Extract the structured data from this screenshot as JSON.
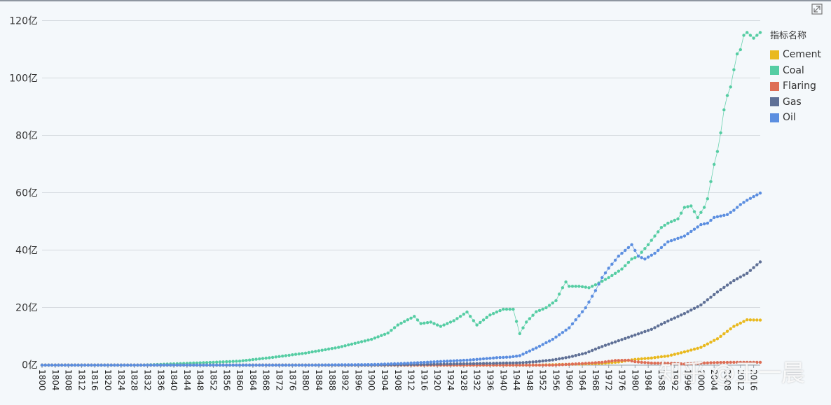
{
  "toolbar": {
    "expand_icon": "expand-arrow-icon"
  },
  "legend": {
    "title": "指标名称"
  },
  "watermark": "知乎 @王一晨",
  "chart_data": {
    "type": "scatter",
    "title": "",
    "xlabel": "",
    "ylabel": "",
    "x_start": 1800,
    "x_end": 2018,
    "x_tick_step": 4,
    "ylim": [
      0,
      12000000000
    ],
    "y_ticks": [
      {
        "value": 0,
        "label": "0亿"
      },
      {
        "value": 2000000000,
        "label": "20亿"
      },
      {
        "value": 4000000000,
        "label": "40亿"
      },
      {
        "value": 6000000000,
        "label": "60亿"
      },
      {
        "value": 8000000000,
        "label": "80亿"
      },
      {
        "value": 10000000000,
        "label": "100亿"
      },
      {
        "value": 12000000000,
        "label": "120亿"
      }
    ],
    "grid": true,
    "legend_position": "right",
    "series": [
      {
        "name": "Cement",
        "color": "#e9b91e",
        "points": [
          [
            1800,
            0
          ],
          [
            1928,
            0
          ],
          [
            1950,
            0
          ],
          [
            1960,
            30000000
          ],
          [
            1970,
            60000000
          ],
          [
            1975,
            110000000
          ],
          [
            1980,
            200000000
          ],
          [
            1985,
            250000000
          ],
          [
            1990,
            320000000
          ],
          [
            1995,
            460000000
          ],
          [
            2000,
            620000000
          ],
          [
            2005,
            920000000
          ],
          [
            2010,
            1350000000
          ],
          [
            2014,
            1580000000
          ],
          [
            2018,
            1570000000
          ]
        ]
      },
      {
        "name": "Coal",
        "color": "#55cda3",
        "points": [
          [
            1800,
            0
          ],
          [
            1830,
            0
          ],
          [
            1850,
            90000000
          ],
          [
            1860,
            140000000
          ],
          [
            1870,
            270000000
          ],
          [
            1880,
            420000000
          ],
          [
            1890,
            620000000
          ],
          [
            1900,
            900000000
          ],
          [
            1905,
            1120000000
          ],
          [
            1908,
            1400000000
          ],
          [
            1913,
            1700000000
          ],
          [
            1915,
            1450000000
          ],
          [
            1918,
            1500000000
          ],
          [
            1921,
            1350000000
          ],
          [
            1925,
            1550000000
          ],
          [
            1929,
            1850000000
          ],
          [
            1932,
            1400000000
          ],
          [
            1936,
            1750000000
          ],
          [
            1940,
            1950000000
          ],
          [
            1943,
            1950000000
          ],
          [
            1945,
            1100000000
          ],
          [
            1947,
            1500000000
          ],
          [
            1950,
            1860000000
          ],
          [
            1953,
            2000000000
          ],
          [
            1956,
            2250000000
          ],
          [
            1958,
            2700000000
          ],
          [
            1959,
            2900000000
          ],
          [
            1960,
            2750000000
          ],
          [
            1963,
            2750000000
          ],
          [
            1966,
            2700000000
          ],
          [
            1968,
            2800000000
          ],
          [
            1972,
            3050000000
          ],
          [
            1976,
            3350000000
          ],
          [
            1979,
            3700000000
          ],
          [
            1981,
            3800000000
          ],
          [
            1984,
            4200000000
          ],
          [
            1988,
            4800000000
          ],
          [
            1990,
            4950000000
          ],
          [
            1993,
            5100000000
          ],
          [
            1995,
            5500000000
          ],
          [
            1997,
            5550000000
          ],
          [
            1999,
            5150000000
          ],
          [
            2001,
            5500000000
          ],
          [
            2002,
            5800000000
          ],
          [
            2003,
            6400000000
          ],
          [
            2004,
            7000000000
          ],
          [
            2005,
            7450000000
          ],
          [
            2006,
            8100000000
          ],
          [
            2007,
            8900000000
          ],
          [
            2008,
            9400000000
          ],
          [
            2009,
            9700000000
          ],
          [
            2010,
            10300000000
          ],
          [
            2011,
            10850000000
          ],
          [
            2012,
            11000000000
          ],
          [
            2013,
            11500000000
          ],
          [
            2014,
            11600000000
          ],
          [
            2016,
            11400000000
          ],
          [
            2018,
            11600000000
          ]
        ]
      },
      {
        "name": "Flaring",
        "color": "#de6e56",
        "points": [
          [
            1800,
            0
          ],
          [
            1955,
            0
          ],
          [
            1960,
            30000000
          ],
          [
            1965,
            60000000
          ],
          [
            1970,
            100000000
          ],
          [
            1974,
            160000000
          ],
          [
            1978,
            170000000
          ],
          [
            1980,
            120000000
          ],
          [
            1985,
            70000000
          ],
          [
            1990,
            65000000
          ],
          [
            1995,
            40000000
          ],
          [
            2000,
            70000000
          ],
          [
            2005,
            90000000
          ],
          [
            2010,
            100000000
          ],
          [
            2018,
            100000000
          ]
        ]
      },
      {
        "name": "Gas",
        "color": "#5f7096",
        "points": [
          [
            1800,
            0
          ],
          [
            1900,
            0
          ],
          [
            1930,
            50000000
          ],
          [
            1945,
            80000000
          ],
          [
            1950,
            120000000
          ],
          [
            1955,
            180000000
          ],
          [
            1960,
            280000000
          ],
          [
            1965,
            420000000
          ],
          [
            1970,
            650000000
          ],
          [
            1975,
            850000000
          ],
          [
            1980,
            1050000000
          ],
          [
            1985,
            1250000000
          ],
          [
            1990,
            1540000000
          ],
          [
            1995,
            1800000000
          ],
          [
            2000,
            2100000000
          ],
          [
            2005,
            2550000000
          ],
          [
            2010,
            2950000000
          ],
          [
            2014,
            3200000000
          ],
          [
            2018,
            3600000000
          ]
        ]
      },
      {
        "name": "Oil",
        "color": "#5b8ee0",
        "points": [
          [
            1800,
            0
          ],
          [
            1880,
            0
          ],
          [
            1890,
            10000000
          ],
          [
            1900,
            20000000
          ],
          [
            1910,
            60000000
          ],
          [
            1920,
            120000000
          ],
          [
            1930,
            180000000
          ],
          [
            1938,
            260000000
          ],
          [
            1942,
            280000000
          ],
          [
            1945,
            330000000
          ],
          [
            1950,
            600000000
          ],
          [
            1955,
            900000000
          ],
          [
            1960,
            1300000000
          ],
          [
            1965,
            2000000000
          ],
          [
            1968,
            2600000000
          ],
          [
            1970,
            3050000000
          ],
          [
            1972,
            3380000000
          ],
          [
            1975,
            3800000000
          ],
          [
            1977,
            4000000000
          ],
          [
            1979,
            4200000000
          ],
          [
            1981,
            3800000000
          ],
          [
            1983,
            3700000000
          ],
          [
            1986,
            3900000000
          ],
          [
            1990,
            4300000000
          ],
          [
            1995,
            4500000000
          ],
          [
            2000,
            4900000000
          ],
          [
            2002,
            4950000000
          ],
          [
            2004,
            5150000000
          ],
          [
            2008,
            5250000000
          ],
          [
            2010,
            5400000000
          ],
          [
            2012,
            5600000000
          ],
          [
            2014,
            5750000000
          ],
          [
            2018,
            6000000000
          ]
        ]
      }
    ]
  }
}
